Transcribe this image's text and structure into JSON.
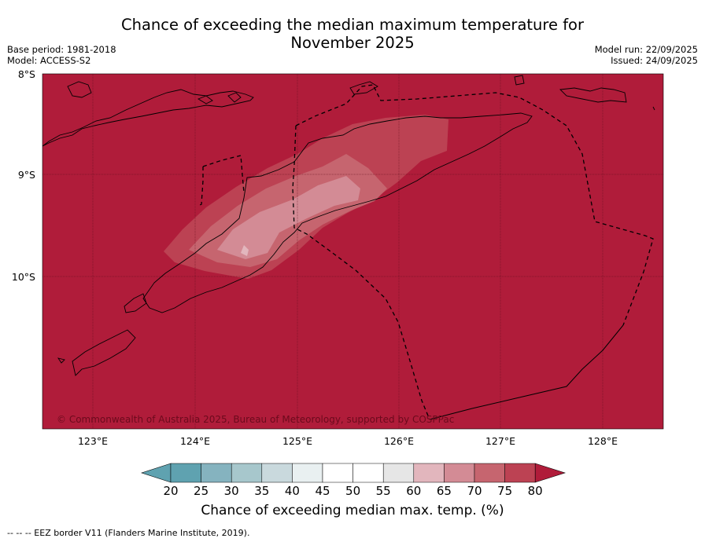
{
  "title_line1": "Chance of exceeding the median maximum temperature for",
  "title_line2": "November 2025",
  "meta_left": [
    "Base period: 1981-2018",
    "Model: ACCESS-S2"
  ],
  "meta_right": [
    "Model run: 22/09/2025",
    "Issued: 24/09/2025"
  ],
  "lat_labels": [
    "8°S",
    "9°S",
    "10°S"
  ],
  "lon_labels": [
    "123°E",
    "124°E",
    "125°E",
    "126°E",
    "127°E",
    "128°E"
  ],
  "copyright": "© Commonwealth of Australia 2025, Bureau of Meteorology, supported by COSPPac",
  "colorbar": {
    "ticks": [
      "20",
      "25",
      "30",
      "35",
      "40",
      "45",
      "50",
      "55",
      "60",
      "65",
      "70",
      "75",
      "80"
    ],
    "colors": [
      "#5fa2b0",
      "#85b3bf",
      "#a7c7cc",
      "#c9d9dd",
      "#e9f0f1",
      "#ffffff",
      "#ffffff",
      "#e6e6e6",
      "#e2b6bd",
      "#d38b95",
      "#c6656f",
      "#bc4253",
      "#b01c3a"
    ],
    "label": "Chance of exceeding median max. temp. (%)"
  },
  "footer": "--  --  -- EEZ border V11 (Flanders Marine Institute, 2019).",
  "map_colors": {
    "ocean_high": "#b01c3a",
    "band_75": "#bc4253",
    "band_70": "#c6656f",
    "band_65": "#d38b95",
    "band_60": "#e2b6bd"
  }
}
